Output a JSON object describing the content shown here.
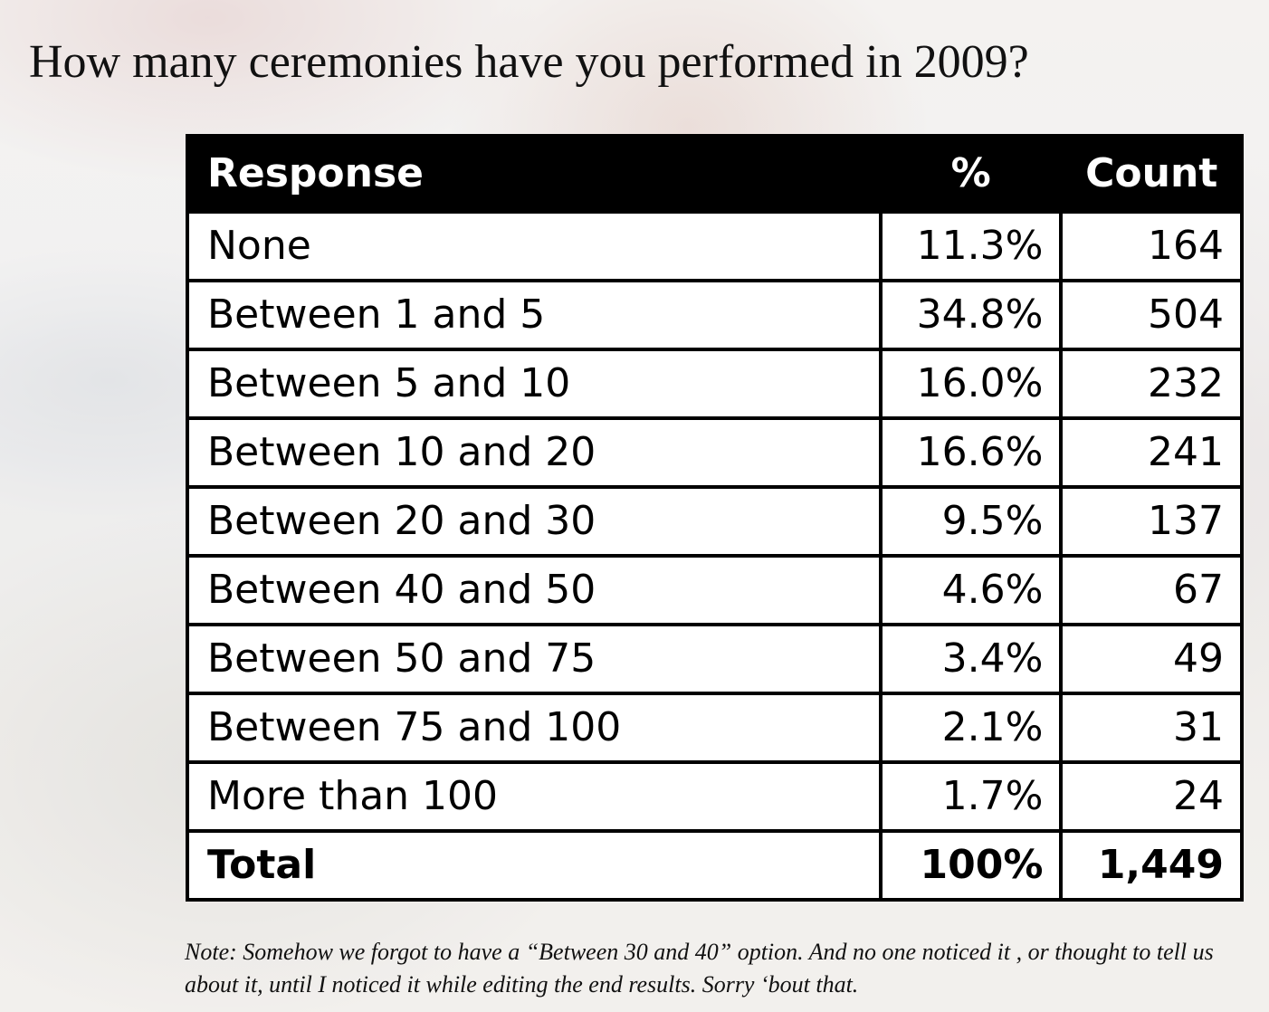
{
  "title": "How many ceremonies have you performed in 2009?",
  "table": {
    "headers": [
      "Response",
      "%",
      "Count"
    ],
    "rows": [
      {
        "response": "None",
        "percent": "11.3%",
        "count": "164"
      },
      {
        "response": "Between 1 and 5",
        "percent": "34.8%",
        "count": "504"
      },
      {
        "response": "Between 5 and 10",
        "percent": "16.0%",
        "count": "232"
      },
      {
        "response": "Between 10 and 20",
        "percent": "16.6%",
        "count": "241"
      },
      {
        "response": "Between 20 and 30",
        "percent": "9.5%",
        "count": "137"
      },
      {
        "response": "Between 40 and 50",
        "percent": "4.6%",
        "count": "67"
      },
      {
        "response": "Between 50 and 75",
        "percent": "3.4%",
        "count": "49"
      },
      {
        "response": "Between 75 and 100",
        "percent": "2.1%",
        "count": "31"
      },
      {
        "response": "More than 100",
        "percent": "1.7%",
        "count": "24"
      }
    ],
    "total": {
      "response": "Total",
      "percent": "100%",
      "count": "1,449"
    }
  },
  "note": "Note: Somehow we forgot to have a “Between 30 and 40” option. And no one noticed it , or thought to tell us about it, until I noticed it while editing the end results. Sorry ‘bout that.",
  "colors": {
    "header_background": "#000000",
    "header_text": "#ffffff",
    "cell_background": "#ffffff",
    "border": "#000000"
  },
  "chart_data": {
    "type": "table",
    "title": "How many ceremonies have you performed in 2009?",
    "columns": [
      "Response",
      "%",
      "Count"
    ],
    "categories": [
      "None",
      "Between 1 and 5",
      "Between 5 and 10",
      "Between 10 and 20",
      "Between 20 and 30",
      "Between 40 and 50",
      "Between 50 and 75",
      "Between 75 and 100",
      "More than 100"
    ],
    "series": [
      {
        "name": "%",
        "values": [
          11.3,
          34.8,
          16.0,
          16.6,
          9.5,
          4.6,
          3.4,
          2.1,
          1.7
        ]
      },
      {
        "name": "Count",
        "values": [
          164,
          504,
          232,
          241,
          137,
          67,
          49,
          31,
          24
        ]
      }
    ],
    "totals": {
      "%": 100,
      "Count": 1449
    }
  }
}
